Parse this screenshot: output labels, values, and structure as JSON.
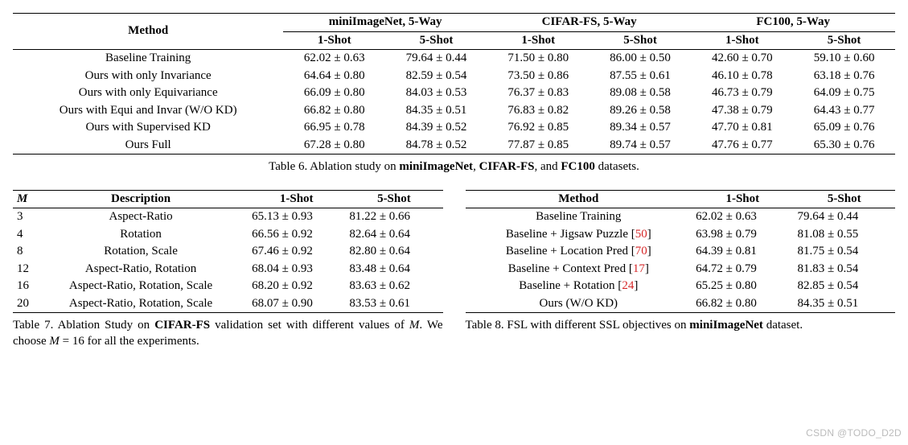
{
  "table6": {
    "header_method": "Method",
    "datasets": [
      "miniImageNet, 5-Way",
      "CIFAR-FS, 5-Way",
      "FC100, 5-Way"
    ],
    "shots": [
      "1-Shot",
      "5-Shot"
    ],
    "rows": [
      {
        "method": "Baseline Training",
        "mini1": "62.02 ± 0.63",
        "mini5": "79.64 ± 0.44",
        "cif1": "71.50 ± 0.80",
        "cif5": "86.00 ± 0.50",
        "fc1": "42.60 ± 0.70",
        "fc5": "59.10 ± 0.60"
      },
      {
        "method": "Ours with only Invariance",
        "mini1": "64.64 ± 0.80",
        "mini5": "82.59 ± 0.54",
        "cif1": "73.50 ± 0.86",
        "cif5": "87.55 ± 0.61",
        "fc1": "46.10 ± 0.78",
        "fc5": "63.18 ± 0.76"
      },
      {
        "method": "Ours with only Equivariance",
        "mini1": "66.09 ± 0.80",
        "mini5": "84.03 ± 0.53",
        "cif1": "76.37 ± 0.83",
        "cif5": "89.08 ± 0.58",
        "fc1": "46.73 ± 0.79",
        "fc5": "64.09 ± 0.75"
      },
      {
        "method": "Ours with Equi and Invar (W/O KD)",
        "mini1": "66.82 ± 0.80",
        "mini5": "84.35 ± 0.51",
        "cif1": "76.83 ± 0.82",
        "cif5": "89.26 ± 0.58",
        "fc1": "47.38 ± 0.79",
        "fc5": "64.43 ± 0.77"
      },
      {
        "method": "Ours with Supervised KD",
        "mini1": "66.95 ± 0.78",
        "mini5": "84.39 ± 0.52",
        "cif1": "76.92 ± 0.85",
        "cif5": "89.34 ± 0.57",
        "fc1": "47.70 ± 0.81",
        "fc5": "65.09 ± 0.76"
      },
      {
        "method": "Ours Full",
        "mini1": "67.28 ± 0.80",
        "mini5": "84.78 ± 0.52",
        "cif1": "77.87 ± 0.85",
        "cif5": "89.74 ± 0.57",
        "fc1": "47.76 ± 0.77",
        "fc5": "65.30 ± 0.76"
      }
    ],
    "caption_pre": "Table 6. Ablation study on ",
    "caption_ds": [
      "miniImageNet",
      "CIFAR-FS",
      "FC100"
    ],
    "caption_post": " datasets."
  },
  "table7": {
    "headers": {
      "m": "M",
      "desc": "Description",
      "s1": "1-Shot",
      "s5": "5-Shot"
    },
    "rows": [
      {
        "m": "3",
        "desc": "Aspect-Ratio",
        "s1": "65.13 ± 0.93",
        "s5": "81.22 ± 0.66"
      },
      {
        "m": "4",
        "desc": "Rotation",
        "s1": "66.56 ± 0.92",
        "s5": "82.64 ± 0.64"
      },
      {
        "m": "8",
        "desc": "Rotation, Scale",
        "s1": "67.46 ± 0.92",
        "s5": "82.80 ± 0.64"
      },
      {
        "m": "12",
        "desc": "Aspect-Ratio, Rotation",
        "s1": "68.04 ± 0.93",
        "s5": "83.48 ± 0.64"
      },
      {
        "m": "16",
        "desc": "Aspect-Ratio, Rotation, Scale",
        "s1": "68.20 ± 0.92",
        "s5": "83.63 ± 0.62"
      },
      {
        "m": "20",
        "desc": "Aspect-Ratio, Rotation, Scale",
        "s1": "68.07 ± 0.90",
        "s5": "83.53 ± 0.61"
      }
    ],
    "caption_parts": {
      "a": "Table 7. Ablation Study on ",
      "b_bold": "CIFAR-FS",
      "c": " validation set with different values of ",
      "d_mi": "M",
      "e": ". We choose ",
      "f_mi": "M",
      "g": " = 16 for all the experiments."
    }
  },
  "table8": {
    "headers": {
      "method": "Method",
      "s1": "1-Shot",
      "s5": "5-Shot"
    },
    "rows": [
      {
        "method": "Baseline Training",
        "ref": "",
        "s1": "62.02 ± 0.63",
        "s5": "79.64 ± 0.44"
      },
      {
        "method": "Baseline + Jigsaw Puzzle [",
        "ref": "50",
        "s1": "63.98 ± 0.79",
        "s5": "81.08 ± 0.55"
      },
      {
        "method": "Baseline + Location Pred [",
        "ref": "70",
        "s1": "64.39 ± 0.81",
        "s5": "81.75 ± 0.54"
      },
      {
        "method": "Baseline + Context Pred [",
        "ref": "17",
        "s1": "64.72 ± 0.79",
        "s5": "81.83 ± 0.54"
      },
      {
        "method": "Baseline + Rotation [",
        "ref": "24",
        "s1": "65.25 ± 0.80",
        "s5": "82.85 ± 0.54"
      },
      {
        "method": "Ours (W/O KD)",
        "ref": "",
        "s1": "66.82 ± 0.80",
        "s5": "84.35 ± 0.51"
      }
    ],
    "caption_parts": {
      "a": "Table 8. FSL with different SSL objectives on ",
      "b_bold": "miniImageNet",
      "c": " dataset."
    }
  },
  "watermark": "CSDN @TODO_D2D"
}
